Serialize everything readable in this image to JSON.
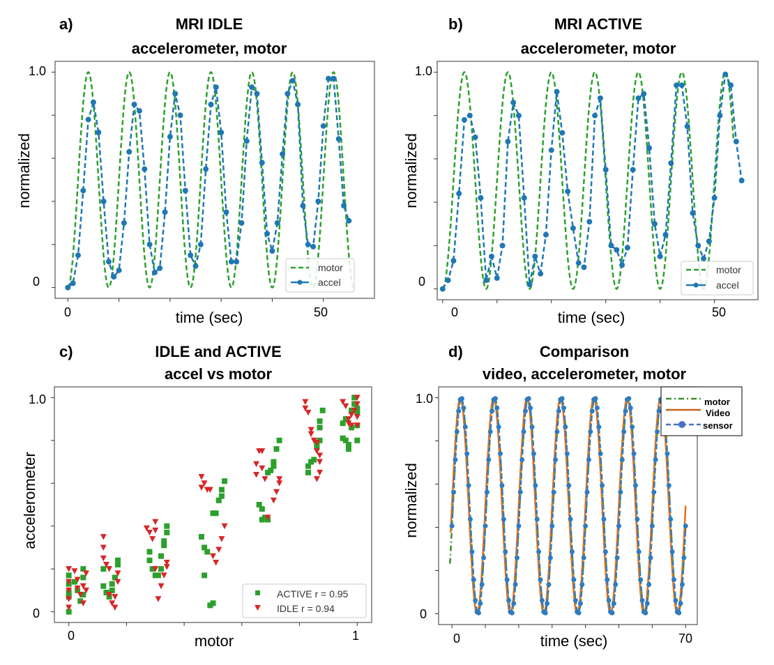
{
  "chart_data": [
    {
      "panel": "a)",
      "type": "line",
      "title": [
        "MRI IDLE",
        "accelerometer, motor"
      ],
      "xlabel": "time (sec)",
      "ylabel": "normalized",
      "xlim": [
        -2.5,
        60
      ],
      "ylim": [
        -0.05,
        1.05
      ],
      "x_tick_labels": {
        "0": "0",
        "50": "50"
      },
      "y_tick_labels": {
        "0": "0",
        "1": "1.0"
      },
      "legend": {
        "position": "bottom-right",
        "entries": [
          "motor",
          "accel"
        ]
      },
      "series": [
        {
          "name": "motor",
          "style": "dashed",
          "color": "#2ca02c",
          "function": "(1-cos(2*pi*t/period))/2",
          "period": 8,
          "t_range": [
            0,
            56
          ]
        },
        {
          "name": "accel",
          "style": "dashed-markers",
          "color": "#1f77b4",
          "x": [
            0,
            1,
            2,
            3,
            4,
            5,
            6,
            7,
            8,
            9,
            10,
            11,
            12,
            13,
            14,
            15,
            16,
            17,
            18,
            19,
            20,
            21,
            22,
            23,
            24,
            25,
            26,
            27,
            28,
            29,
            30,
            31,
            32,
            33,
            34,
            35,
            36,
            37,
            38,
            39,
            40,
            41,
            42,
            43,
            44,
            45,
            46,
            47,
            48,
            49,
            50,
            51,
            52,
            53,
            54,
            55
          ],
          "y": [
            0,
            0.02,
            0.15,
            0.45,
            0.78,
            0.86,
            0.72,
            0.4,
            0.12,
            0.05,
            0.08,
            0.3,
            0.63,
            0.85,
            0.82,
            0.55,
            0.2,
            0.07,
            0.09,
            0.35,
            0.7,
            0.9,
            0.8,
            0.45,
            0.15,
            0.1,
            0.2,
            0.55,
            0.85,
            0.93,
            0.72,
            0.35,
            0.12,
            0.12,
            0.3,
            0.68,
            0.93,
            0.9,
            0.58,
            0.25,
            0.17,
            0.3,
            0.62,
            0.9,
            0.96,
            0.85,
            0.38,
            0.2,
            0.19,
            0.4,
            0.75,
            0.97,
            0.97,
            0.69,
            0.38,
            0.31
          ]
        }
      ]
    },
    {
      "panel": "b)",
      "type": "line",
      "title": [
        "MRI ACTIVE",
        "accelerometer, motor"
      ],
      "xlabel": "time (sec)",
      "ylabel": "normalized",
      "xlim": [
        -1,
        58
      ],
      "ylim": [
        -0.05,
        1.05
      ],
      "x_tick_labels": {
        "0": "0",
        "50": "50"
      },
      "y_tick_labels": {
        "0": "0",
        "1": "1.0"
      },
      "legend": {
        "position": "bottom-right",
        "entries": [
          "motor",
          "accel"
        ]
      },
      "series": [
        {
          "name": "motor",
          "style": "dashed",
          "color": "#2ca02c",
          "function": "(1-cos(2*pi*t/period))/2",
          "period": 8,
          "t_range": [
            0,
            53.5
          ]
        },
        {
          "name": "accel",
          "style": "dashed-markers",
          "color": "#1f77b4",
          "x": [
            0,
            1,
            2,
            3,
            4,
            5,
            6,
            7,
            8,
            9,
            10,
            11,
            12,
            13,
            14,
            15,
            16,
            17,
            18,
            19,
            20,
            21,
            22,
            23,
            24,
            25,
            26,
            27,
            28,
            29,
            30,
            31,
            32,
            33,
            34,
            35,
            36,
            37,
            38,
            39,
            40,
            41,
            42,
            43,
            44,
            45,
            46,
            47,
            48,
            49,
            50,
            51,
            52,
            53,
            54,
            55
          ],
          "y": [
            0,
            0.04,
            0.13,
            0.44,
            0.78,
            0.8,
            0.7,
            0.42,
            0.04,
            0.15,
            0.05,
            0.2,
            0.68,
            0.86,
            0.8,
            0.42,
            0.02,
            0.15,
            0.07,
            0.25,
            0.64,
            0.91,
            0.72,
            0.45,
            0.28,
            0.12,
            0.1,
            0.31,
            0.8,
            0.88,
            0.55,
            0.2,
            0.18,
            0.11,
            0.19,
            0.55,
            0.88,
            0.9,
            0.65,
            0.3,
            0.15,
            0.25,
            0.58,
            0.94,
            0.94,
            0.75,
            0.35,
            0.2,
            0.14,
            0.22,
            0.42,
            0.8,
            0.99,
            0.94,
            0.68,
            0.5
          ]
        }
      ]
    },
    {
      "panel": "c)",
      "type": "scatter",
      "title": [
        "IDLE and ACTIVE",
        "accel vs motor"
      ],
      "xlabel": "motor",
      "ylabel": "accelerometer",
      "xlim": [
        -0.05,
        1.05
      ],
      "ylim": [
        -0.05,
        1.05
      ],
      "x_tick_labels": {
        "0": "0",
        "1": "1"
      },
      "y_tick_labels": {
        "0": "0",
        "1": "1.0"
      },
      "legend": {
        "position": "bottom-right",
        "entries": [
          "ACTIVE r = 0.95",
          "IDLE r = 0.94"
        ]
      },
      "series": [
        {
          "name": "ACTIVE r = 0.95",
          "marker": "square",
          "color": "#2ca02c",
          "points": [
            [
              0,
              0.17
            ],
            [
              0,
              0.13
            ],
            [
              0,
              0.09
            ],
            [
              0,
              0.07
            ],
            [
              0,
              0.0
            ],
            [
              0.02,
              0.14
            ],
            [
              0.04,
              0.05
            ],
            [
              0.05,
              0.08
            ],
            [
              0.05,
              0.2
            ],
            [
              0.05,
              0.16
            ],
            [
              0.03,
              0.1
            ],
            [
              0.12,
              0.2
            ],
            [
              0.12,
              0.12
            ],
            [
              0.13,
              0.09
            ],
            [
              0.14,
              0.07
            ],
            [
              0.15,
              0.13
            ],
            [
              0.16,
              0.16
            ],
            [
              0.17,
              0.24
            ],
            [
              0.17,
              0.22
            ],
            [
              0.15,
              0.1
            ],
            [
              0.28,
              0.28
            ],
            [
              0.28,
              0.24
            ],
            [
              0.29,
              0.2
            ],
            [
              0.3,
              0.17
            ],
            [
              0.31,
              0.17
            ],
            [
              0.32,
              0.2
            ],
            [
              0.32,
              0.26
            ],
            [
              0.33,
              0.33
            ],
            [
              0.33,
              0.31
            ],
            [
              0.34,
              0.4
            ],
            [
              0.34,
              0.37
            ],
            [
              0.46,
              0.35
            ],
            [
              0.47,
              0.3
            ],
            [
              0.48,
              0.28
            ],
            [
              0.47,
              0.17
            ],
            [
              0.49,
              0.03
            ],
            [
              0.5,
              0.04
            ],
            [
              0.5,
              0.46
            ],
            [
              0.51,
              0.46
            ],
            [
              0.52,
              0.52
            ],
            [
              0.53,
              0.54
            ],
            [
              0.53,
              0.57
            ],
            [
              0.54,
              0.61
            ],
            [
              0.66,
              0.5
            ],
            [
              0.67,
              0.48
            ],
            [
              0.67,
              0.43
            ],
            [
              0.68,
              0.44
            ],
            [
              0.69,
              0.43
            ],
            [
              0.69,
              0.65
            ],
            [
              0.7,
              0.66
            ],
            [
              0.71,
              0.68
            ],
            [
              0.71,
              0.7
            ],
            [
              0.72,
              0.76
            ],
            [
              0.73,
              0.8
            ],
            [
              0.83,
              0.68
            ],
            [
              0.83,
              0.65
            ],
            [
              0.84,
              0.7
            ],
            [
              0.85,
              0.71
            ],
            [
              0.86,
              0.77
            ],
            [
              0.86,
              0.78
            ],
            [
              0.87,
              0.8
            ],
            [
              0.87,
              0.86
            ],
            [
              0.87,
              0.89
            ],
            [
              0.88,
              0.94
            ],
            [
              0.95,
              0.88
            ],
            [
              0.95,
              0.81
            ],
            [
              0.96,
              0.9
            ],
            [
              0.96,
              0.8
            ],
            [
              0.97,
              0.76
            ],
            [
              0.97,
              0.78
            ],
            [
              0.98,
              0.86
            ],
            [
              0.98,
              0.94
            ],
            [
              0.99,
              0.97
            ],
            [
              0.99,
              1.0
            ],
            [
              1.0,
              0.95
            ],
            [
              1.0,
              0.93
            ],
            [
              1.0,
              0.87
            ],
            [
              1.0,
              0.8
            ]
          ]
        },
        {
          "name": "IDLE r = 0.94",
          "marker": "triangle-down",
          "color": "#d62728",
          "points": [
            [
              0,
              0.2
            ],
            [
              0,
              0.14
            ],
            [
              0,
              0.1
            ],
            [
              0,
              0.06
            ],
            [
              0,
              0.02
            ],
            [
              0.02,
              0.19
            ],
            [
              0.03,
              0.15
            ],
            [
              0.03,
              0.11
            ],
            [
              0.04,
              0.08
            ],
            [
              0.05,
              0.04
            ],
            [
              0.05,
              0.12
            ],
            [
              0.06,
              0.18
            ],
            [
              0.06,
              0.1
            ],
            [
              0.12,
              0.35
            ],
            [
              0.12,
              0.3
            ],
            [
              0.12,
              0.25
            ],
            [
              0.13,
              0.22
            ],
            [
              0.14,
              0.2
            ],
            [
              0.14,
              0.08
            ],
            [
              0.15,
              0.04
            ],
            [
              0.16,
              0.02
            ],
            [
              0.16,
              0.07
            ],
            [
              0.17,
              0.14
            ],
            [
              0.17,
              0.18
            ],
            [
              0.27,
              0.39
            ],
            [
              0.28,
              0.37
            ],
            [
              0.29,
              0.34
            ],
            [
              0.3,
              0.42
            ],
            [
              0.3,
              0.38
            ],
            [
              0.3,
              0.2
            ],
            [
              0.31,
              0.06
            ],
            [
              0.32,
              0.12
            ],
            [
              0.33,
              0.17
            ],
            [
              0.34,
              0.21
            ],
            [
              0.34,
              0.23
            ],
            [
              0.46,
              0.63
            ],
            [
              0.46,
              0.58
            ],
            [
              0.47,
              0.6
            ],
            [
              0.48,
              0.57
            ],
            [
              0.49,
              0.57
            ],
            [
              0.5,
              0.26
            ],
            [
              0.51,
              0.23
            ],
            [
              0.52,
              0.29
            ],
            [
              0.53,
              0.34
            ],
            [
              0.54,
              0.4
            ],
            [
              0.65,
              0.69
            ],
            [
              0.65,
              0.64
            ],
            [
              0.66,
              0.75
            ],
            [
              0.67,
              0.75
            ],
            [
              0.67,
              0.67
            ],
            [
              0.68,
              0.62
            ],
            [
              0.69,
              0.44
            ],
            [
              0.71,
              0.52
            ],
            [
              0.72,
              0.56
            ],
            [
              0.73,
              0.6
            ],
            [
              0.73,
              0.62
            ],
            [
              0.82,
              0.98
            ],
            [
              0.82,
              0.95
            ],
            [
              0.83,
              0.93
            ],
            [
              0.84,
              0.85
            ],
            [
              0.84,
              0.83
            ],
            [
              0.85,
              0.8
            ],
            [
              0.86,
              0.79
            ],
            [
              0.86,
              0.75
            ],
            [
              0.87,
              0.73
            ],
            [
              0.87,
              0.7
            ],
            [
              0.87,
              0.65
            ],
            [
              0.86,
              0.62
            ],
            [
              0.95,
              0.98
            ],
            [
              0.96,
              0.96
            ],
            [
              0.97,
              0.9
            ],
            [
              0.97,
              0.88
            ],
            [
              0.98,
              0.87
            ],
            [
              0.98,
              0.92
            ],
            [
              0.99,
              0.94
            ],
            [
              1.0,
              1.0
            ],
            [
              1.0,
              0.97
            ],
            [
              1.0,
              0.91
            ],
            [
              1.0,
              0.87
            ]
          ]
        }
      ]
    },
    {
      "panel": "d)",
      "type": "line",
      "title": [
        "Comparison",
        "video, accelerometer, motor"
      ],
      "xlabel": "time (sec)",
      "ylabel": "normalized",
      "xlim": [
        -4,
        73.5
      ],
      "ylim": [
        -0.05,
        1.05
      ],
      "x_tick_labels": {
        "0": "0",
        "70": "70"
      },
      "y_tick_labels": {
        "0": "0",
        "1": "1.0"
      },
      "legend": {
        "position": "top-right",
        "entries": [
          "motor",
          "Video",
          "sensor"
        ]
      },
      "series": [
        {
          "name": "motor",
          "style": "dash-dot",
          "color": "#3f8f2a",
          "function": "(1+cos(2*pi*(t-peak)/period))/2",
          "period": 10,
          "peak": 2.8,
          "t_range": [
            -0.6,
            70
          ]
        },
        {
          "name": "Video",
          "style": "solid",
          "color": "#e8701a",
          "function": "(1+cos(2*pi*(t-peak)/period))/2",
          "period": 10,
          "peak": 2.5,
          "t_range": [
            -0.4,
            70
          ]
        },
        {
          "name": "sensor",
          "style": "dashed-markers",
          "color": "#2f7cc0",
          "function": "(1+cos(2*pi*(t-peak)/period))/2",
          "period": 10,
          "peak": 2.8,
          "t_range": [
            0,
            70
          ],
          "sample_interval": 0.5
        }
      ]
    }
  ]
}
